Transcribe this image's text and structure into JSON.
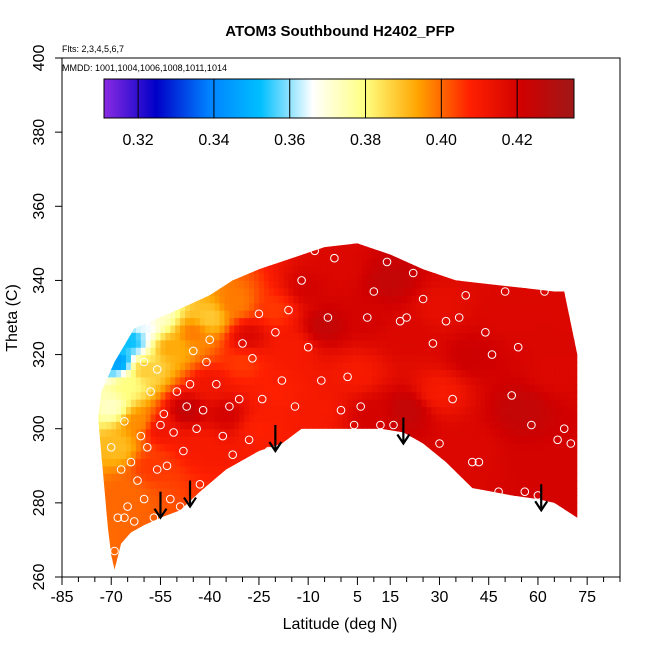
{
  "chart_data": {
    "type": "heatmap",
    "title": "ATOM3 Southbound H2402_PFP",
    "subtitle_flights": "Flts: 2,3,4,5,6,7",
    "subtitle_dates": "MMDD: 1001,1004,1006,1008,1011,1014",
    "xlabel": "Latitude (deg N)",
    "ylabel": "Theta (C)",
    "xlim": [
      -85,
      85
    ],
    "ylim": [
      260,
      400
    ],
    "x_ticks": [
      -85,
      -70,
      -55,
      -40,
      -25,
      -10,
      5,
      15,
      30,
      45,
      60,
      75
    ],
    "x_tick_labels": [
      "-85",
      "-70",
      "-55",
      "-40",
      "-25",
      "-10",
      "5",
      "15",
      "30",
      "45",
      "60",
      "75"
    ],
    "x_minor_ticks": [
      -80,
      -75,
      -65,
      -60,
      -50,
      -45,
      -35,
      -30,
      -20,
      -15,
      -5,
      0,
      10,
      20,
      25,
      35,
      40,
      50,
      55,
      65,
      70,
      80,
      85
    ],
    "y_ticks": [
      260,
      280,
      300,
      320,
      340,
      360,
      380,
      400
    ],
    "y_tick_labels": [
      "260",
      "280",
      "300",
      "320",
      "340",
      "360",
      "380",
      "400"
    ],
    "colorbar": {
      "range": [
        0.311,
        0.435
      ],
      "ticks": [
        0.32,
        0.34,
        0.36,
        0.38,
        0.4,
        0.42
      ],
      "tick_labels": [
        "0.32",
        "0.34",
        "0.36",
        "0.38",
        "0.40",
        "0.42"
      ],
      "colors": [
        "#8a2be2",
        "#0000c8",
        "#0080ff",
        "#00bfff",
        "#ffffff",
        "#ffff80",
        "#ffa500",
        "#ff2000",
        "#d00000",
        "#a01818"
      ]
    },
    "region": {
      "top": [
        [
          -73,
          310
        ],
        [
          -69,
          318
        ],
        [
          -63,
          327
        ],
        [
          -58,
          329
        ],
        [
          -50,
          332
        ],
        [
          -45,
          334
        ],
        [
          -40,
          336
        ],
        [
          -33,
          340
        ],
        [
          -25,
          343
        ],
        [
          -15,
          346
        ],
        [
          -5,
          349
        ],
        [
          5,
          350
        ],
        [
          15,
          347
        ],
        [
          25,
          343
        ],
        [
          35,
          340
        ],
        [
          45,
          339
        ],
        [
          55,
          338
        ],
        [
          65,
          337
        ],
        [
          68,
          337
        ],
        [
          72,
          320
        ]
      ],
      "bottom": [
        [
          72,
          276
        ],
        [
          65,
          280
        ],
        [
          60,
          281
        ],
        [
          52,
          282
        ],
        [
          40,
          284
        ],
        [
          32,
          291
        ],
        [
          25,
          296
        ],
        [
          19,
          299
        ],
        [
          12,
          300
        ],
        [
          5,
          300
        ],
        [
          -5,
          300
        ],
        [
          -12,
          300
        ],
        [
          -18,
          296
        ],
        [
          -25,
          294
        ],
        [
          -35,
          289
        ],
        [
          -43,
          283
        ],
        [
          -49,
          278
        ],
        [
          -55,
          276
        ],
        [
          -60,
          274
        ],
        [
          -64,
          272
        ],
        [
          -67,
          269
        ],
        [
          -69,
          262
        ],
        [
          -70,
          266
        ],
        [
          -71,
          273
        ],
        [
          -72,
          283
        ],
        [
          -73,
          293
        ],
        [
          -74,
          303
        ]
      ]
    },
    "field_anchors": [
      {
        "lat": -68,
        "theta": 318,
        "value": 0.345
      },
      {
        "lat": -64,
        "theta": 324,
        "value": 0.352
      },
      {
        "lat": -60,
        "theta": 328,
        "value": 0.365
      },
      {
        "lat": -55,
        "theta": 331,
        "value": 0.372
      },
      {
        "lat": -70,
        "theta": 306,
        "value": 0.372
      },
      {
        "lat": -65,
        "theta": 312,
        "value": 0.38
      },
      {
        "lat": -60,
        "theta": 316,
        "value": 0.388
      },
      {
        "lat": -52,
        "theta": 322,
        "value": 0.393
      },
      {
        "lat": -45,
        "theta": 326,
        "value": 0.398
      },
      {
        "lat": -40,
        "theta": 330,
        "value": 0.388
      },
      {
        "lat": -32,
        "theta": 334,
        "value": 0.398
      },
      {
        "lat": -68,
        "theta": 295,
        "value": 0.39
      },
      {
        "lat": -66,
        "theta": 283,
        "value": 0.4
      },
      {
        "lat": -62,
        "theta": 302,
        "value": 0.396
      },
      {
        "lat": -58,
        "theta": 290,
        "value": 0.405
      },
      {
        "lat": -55,
        "theta": 300,
        "value": 0.412
      },
      {
        "lat": -47,
        "theta": 305,
        "value": 0.425
      },
      {
        "lat": -42,
        "theta": 296,
        "value": 0.41
      },
      {
        "lat": -40,
        "theta": 312,
        "value": 0.412
      },
      {
        "lat": -35,
        "theta": 304,
        "value": 0.42
      },
      {
        "lat": -30,
        "theta": 318,
        "value": 0.405
      },
      {
        "lat": -25,
        "theta": 300,
        "value": 0.408
      },
      {
        "lat": -28,
        "theta": 325,
        "value": 0.418
      },
      {
        "lat": -20,
        "theta": 310,
        "value": 0.408
      },
      {
        "lat": -15,
        "theta": 322,
        "value": 0.41
      },
      {
        "lat": -20,
        "theta": 332,
        "value": 0.405
      },
      {
        "lat": -10,
        "theta": 338,
        "value": 0.42
      },
      {
        "lat": -5,
        "theta": 328,
        "value": 0.425
      },
      {
        "lat": 0,
        "theta": 344,
        "value": 0.418
      },
      {
        "lat": -8,
        "theta": 305,
        "value": 0.41
      },
      {
        "lat": 5,
        "theta": 315,
        "value": 0.41
      },
      {
        "lat": 8,
        "theta": 330,
        "value": 0.42
      },
      {
        "lat": 10,
        "theta": 304,
        "value": 0.42
      },
      {
        "lat": 15,
        "theta": 340,
        "value": 0.425
      },
      {
        "lat": 20,
        "theta": 325,
        "value": 0.418
      },
      {
        "lat": 20,
        "theta": 305,
        "value": 0.425
      },
      {
        "lat": 30,
        "theta": 333,
        "value": 0.415
      },
      {
        "lat": 30,
        "theta": 310,
        "value": 0.41
      },
      {
        "lat": 40,
        "theta": 320,
        "value": 0.422
      },
      {
        "lat": 40,
        "theta": 295,
        "value": 0.418
      },
      {
        "lat": 50,
        "theta": 330,
        "value": 0.418
      },
      {
        "lat": 55,
        "theta": 305,
        "value": 0.425
      },
      {
        "lat": 60,
        "theta": 290,
        "value": 0.42
      },
      {
        "lat": 65,
        "theta": 315,
        "value": 0.418
      },
      {
        "lat": 70,
        "theta": 285,
        "value": 0.42
      }
    ],
    "samples": [
      [
        -69,
        267
      ],
      [
        -68,
        276
      ],
      [
        -67,
        289
      ],
      [
        -66,
        276
      ],
      [
        -65,
        279
      ],
      [
        -64,
        291
      ],
      [
        -63,
        275
      ],
      [
        -62,
        286
      ],
      [
        -61,
        298
      ],
      [
        -60,
        281
      ],
      [
        -59,
        295
      ],
      [
        -58,
        310
      ],
      [
        -57,
        276
      ],
      [
        -56,
        289
      ],
      [
        -55,
        301
      ],
      [
        -54,
        304
      ],
      [
        -53,
        290
      ],
      [
        -52,
        281
      ],
      [
        -51,
        299
      ],
      [
        -50,
        310
      ],
      [
        -49,
        279
      ],
      [
        -48,
        294
      ],
      [
        -47,
        306
      ],
      [
        -46,
        312
      ],
      [
        -45,
        321
      ],
      [
        -44,
        300
      ],
      [
        -43,
        285
      ],
      [
        -42,
        305
      ],
      [
        -41,
        318
      ],
      [
        -40,
        324
      ],
      [
        -38,
        312
      ],
      [
        -36,
        298
      ],
      [
        -34,
        306
      ],
      [
        -33,
        293
      ],
      [
        -31,
        308
      ],
      [
        -30,
        323
      ],
      [
        -28,
        297
      ],
      [
        -27,
        319
      ],
      [
        -25,
        331
      ],
      [
        -24,
        308
      ],
      [
        -22,
        294
      ],
      [
        -20,
        326
      ],
      [
        -18,
        313
      ],
      [
        -16,
        332
      ],
      [
        -14,
        306
      ],
      [
        -12,
        340
      ],
      [
        -10,
        322
      ],
      [
        -8,
        348
      ],
      [
        -6,
        313
      ],
      [
        -4,
        330
      ],
      [
        -2,
        346
      ],
      [
        0,
        305
      ],
      [
        2,
        314
      ],
      [
        4,
        301
      ],
      [
        6,
        306
      ],
      [
        8,
        330
      ],
      [
        10,
        337
      ],
      [
        12,
        301
      ],
      [
        14,
        345
      ],
      [
        16,
        301
      ],
      [
        18,
        329
      ],
      [
        20,
        330
      ],
      [
        22,
        342
      ],
      [
        25,
        335
      ],
      [
        28,
        323
      ],
      [
        30,
        296
      ],
      [
        32,
        329
      ],
      [
        34,
        308
      ],
      [
        36,
        330
      ],
      [
        38,
        336
      ],
      [
        40,
        291
      ],
      [
        42,
        291
      ],
      [
        44,
        326
      ],
      [
        46,
        320
      ],
      [
        48,
        283
      ],
      [
        50,
        337
      ],
      [
        52,
        309
      ],
      [
        54,
        322
      ],
      [
        56,
        283
      ],
      [
        58,
        301
      ],
      [
        60,
        282
      ],
      [
        62,
        337
      ],
      [
        65,
        277
      ],
      [
        66,
        297
      ],
      [
        68,
        300
      ],
      [
        70,
        296
      ],
      [
        -70,
        295
      ],
      [
        -66,
        302
      ],
      [
        -60,
        318
      ],
      [
        -56,
        316
      ]
    ],
    "arrows": [
      {
        "lat": -55,
        "theta": 276
      },
      {
        "lat": -46,
        "theta": 279
      },
      {
        "lat": -20,
        "theta": 294
      },
      {
        "lat": 19,
        "theta": 296
      },
      {
        "lat": 61,
        "theta": 278
      }
    ]
  }
}
